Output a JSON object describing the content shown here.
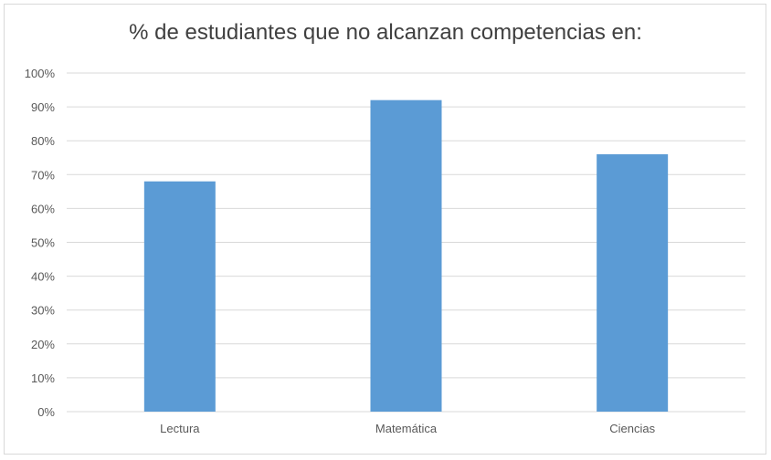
{
  "chart_data": {
    "type": "bar",
    "title": "% de estudiantes que no alcanzan competencias en:",
    "categories": [
      "Lectura",
      "Matemática",
      "Ciencias"
    ],
    "values": [
      68,
      92,
      76
    ],
    "unit": "%",
    "ylim": [
      0,
      100
    ],
    "yticks": [
      0,
      10,
      20,
      30,
      40,
      50,
      60,
      70,
      80,
      90,
      100
    ],
    "ytick_labels": [
      "0%",
      "10%",
      "20%",
      "30%",
      "40%",
      "50%",
      "60%",
      "70%",
      "80%",
      "90%",
      "100%"
    ],
    "grid": true,
    "legend": "none",
    "bar_color": "#5b9bd5",
    "grid_color": "#d9d9d9"
  }
}
